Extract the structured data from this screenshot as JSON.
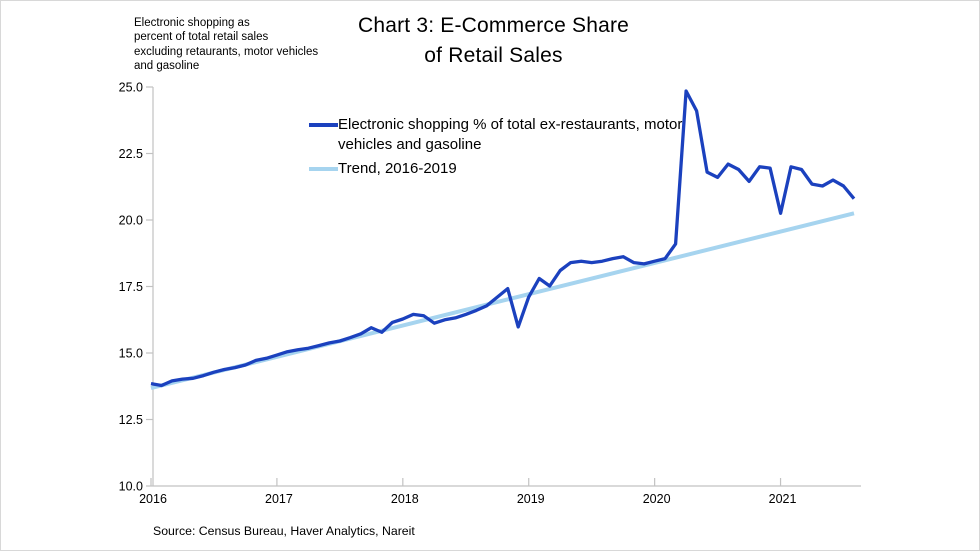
{
  "header": {
    "note": "Electronic shopping as\npercent of total retail sales\nexcluding retaurants, motor vehicles\nand gasoline",
    "title_line1": "Chart 3: E-Commerce Share",
    "title_line2": "of Retail Sales"
  },
  "source": "Source: Census Bureau, Haver Analytics, Nareit",
  "colors": {
    "series": "#1b41be",
    "trend": "#a6d4ef",
    "axis": "#c2c2c2",
    "text": "#000000"
  },
  "chart_data": {
    "type": "line",
    "title": "Chart 3: E-Commerce Share of Retail Sales",
    "xlabel": "",
    "ylabel": "Electronic shopping as percent of total retail sales excluding retaurants, motor vehicles and gasoline",
    "x_start_month": "2016-01",
    "x_end_month": "2021-08",
    "x_tick_labels": [
      "2016",
      "2017",
      "2018",
      "2019",
      "2020",
      "2021"
    ],
    "y_tick_labels": [
      "10.0",
      "12.5",
      "15.0",
      "17.5",
      "20.0",
      "22.5",
      "25.0"
    ],
    "ylim": [
      10,
      25
    ],
    "grid": false,
    "legend_position": "top-center",
    "series": [
      {
        "name": "Electronic shopping % of total ex-restaurants, motor vehicles and gasoline",
        "color": "#1b41be",
        "values": [
          13.85,
          13.78,
          13.95,
          14.02,
          14.05,
          14.15,
          14.28,
          14.38,
          14.45,
          14.55,
          14.72,
          14.8,
          14.92,
          15.05,
          15.12,
          15.18,
          15.28,
          15.38,
          15.45,
          15.58,
          15.72,
          15.95,
          15.78,
          16.15,
          16.28,
          16.45,
          16.4,
          16.12,
          16.25,
          16.32,
          16.45,
          16.6,
          16.78,
          17.1,
          17.42,
          15.98,
          17.1,
          17.8,
          17.52,
          18.1,
          18.4,
          18.45,
          18.4,
          18.45,
          18.55,
          18.62,
          18.4,
          18.35,
          18.45,
          18.55,
          19.1,
          24.85,
          24.1,
          21.8,
          21.6,
          22.1,
          21.9,
          21.45,
          22.0,
          21.95,
          20.25,
          22.0,
          21.9,
          21.35,
          21.28,
          21.5,
          21.28,
          20.8
        ]
      },
      {
        "name": "Trend, 2016-2019",
        "color": "#a6d4ef",
        "straight_line": true,
        "values": [
          13.68,
          20.25
        ]
      }
    ]
  }
}
